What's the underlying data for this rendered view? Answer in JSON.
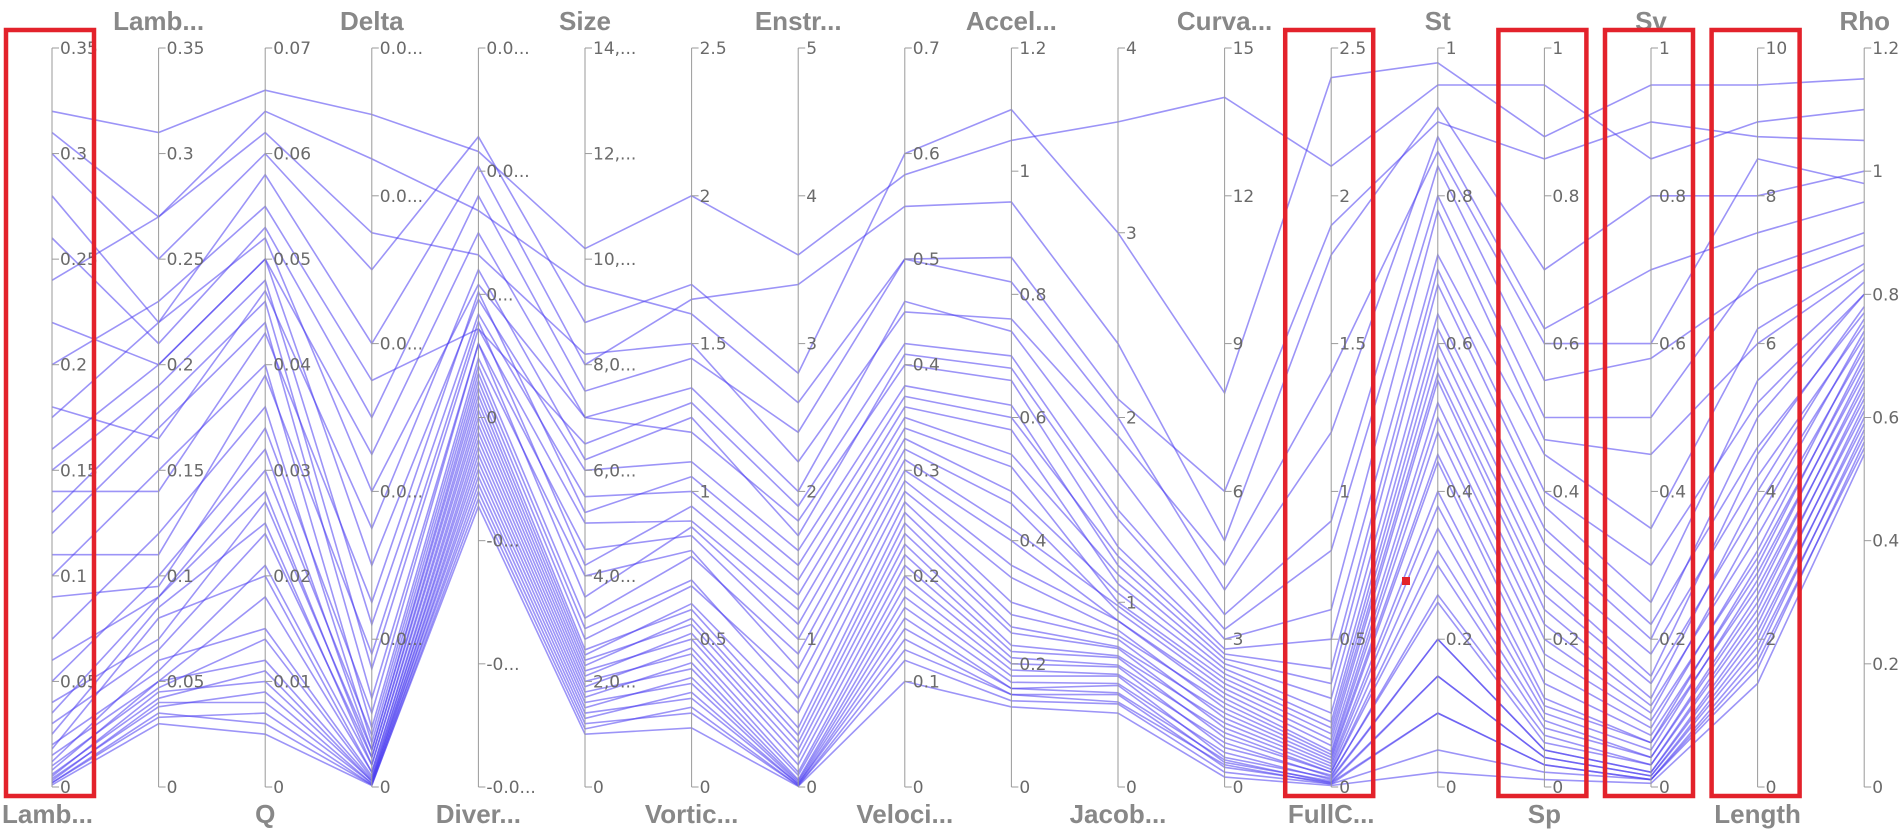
{
  "colors": {
    "line": "#4b3df0",
    "highlight": "#e3222b",
    "axis": "#9a9a9a",
    "title": "#888888"
  },
  "chart_data": {
    "type": "parallel-coordinates",
    "dimensions": [
      {
        "key": "lambda2",
        "title": "Lamb...",
        "title_pos": "bottom",
        "range": [
          0,
          0.35
        ],
        "ticks": [
          "0",
          "0.05",
          "0.1",
          "0.15",
          "0.2",
          "0.25",
          "0.3",
          "0.35"
        ],
        "highlighted": true
      },
      {
        "key": "lambda",
        "title": "Lamb...",
        "title_pos": "top",
        "range": [
          0,
          0.35
        ],
        "ticks": [
          "0",
          "0.05",
          "0.1",
          "0.15",
          "0.2",
          "0.25",
          "0.3",
          "0.35"
        ]
      },
      {
        "key": "q",
        "title": "Q",
        "title_pos": "bottom",
        "range": [
          0,
          0.07
        ],
        "ticks": [
          "0",
          "0.01",
          "0.02",
          "0.03",
          "0.04",
          "0.05",
          "0.06",
          "0.07"
        ]
      },
      {
        "key": "delta",
        "title": "Delta",
        "title_pos": "top",
        "range": [
          0,
          1
        ],
        "ticks": [
          "0",
          "0.0...",
          "0.0...",
          "0.0...",
          "0.0...",
          "0.0..."
        ]
      },
      {
        "key": "divergence",
        "title": "Diver...",
        "title_pos": "bottom",
        "range": [
          0,
          1
        ],
        "ticks": [
          "-0.0...",
          "-0...",
          "-0...",
          "0",
          "0...",
          "0.0...",
          "0.0..."
        ]
      },
      {
        "key": "size",
        "title": "Size",
        "title_pos": "top",
        "range": [
          0,
          14
        ],
        "ticks": [
          "0",
          "2,0...",
          "4,0...",
          "6,0...",
          "8,0...",
          "10,...",
          "12,...",
          "14,..."
        ]
      },
      {
        "key": "vorticity",
        "title": "Vortic...",
        "title_pos": "bottom",
        "range": [
          0,
          2.5
        ],
        "ticks": [
          "0",
          "0.5",
          "1",
          "1.5",
          "2",
          "2.5"
        ]
      },
      {
        "key": "enstrophy",
        "title": "Enstr...",
        "title_pos": "top",
        "range": [
          0,
          5
        ],
        "ticks": [
          "0",
          "1",
          "2",
          "3",
          "4",
          "5"
        ]
      },
      {
        "key": "velocity",
        "title": "Veloci...",
        "title_pos": "bottom",
        "range": [
          0,
          0.7
        ],
        "ticks": [
          "0",
          "0.1",
          "0.2",
          "0.3",
          "0.4",
          "0.5",
          "0.6",
          "0.7"
        ]
      },
      {
        "key": "acceleration",
        "title": "Accel...",
        "title_pos": "top",
        "range": [
          0,
          1.2
        ],
        "ticks": [
          "0",
          "0.2",
          "0.4",
          "0.6",
          "0.8",
          "1",
          "1.2"
        ]
      },
      {
        "key": "jacobian",
        "title": "Jacob...",
        "title_pos": "bottom",
        "range": [
          0,
          4
        ],
        "ticks": [
          "0",
          "1",
          "2",
          "3",
          "4"
        ]
      },
      {
        "key": "curvature",
        "title": "Curva...",
        "title_pos": "top",
        "range": [
          0,
          15
        ],
        "ticks": [
          "0",
          "3",
          "6",
          "9",
          "12",
          "15"
        ]
      },
      {
        "key": "fullc",
        "title": "FullC...",
        "title_pos": "bottom",
        "range": [
          0,
          2.5
        ],
        "ticks": [
          "0",
          "0.5",
          "1",
          "1.5",
          "2",
          "2.5"
        ],
        "highlighted": true
      },
      {
        "key": "st",
        "title": "St",
        "title_pos": "top",
        "range": [
          0,
          1
        ],
        "ticks": [
          "0",
          "0.2",
          "0.4",
          "0.6",
          "0.8",
          "1"
        ]
      },
      {
        "key": "sp",
        "title": "Sp",
        "title_pos": "bottom",
        "range": [
          0,
          1
        ],
        "ticks": [
          "0",
          "0.2",
          "0.4",
          "0.6",
          "0.8",
          "1"
        ],
        "highlighted": true
      },
      {
        "key": "sv",
        "title": "Sv",
        "title_pos": "top",
        "range": [
          0,
          1
        ],
        "ticks": [
          "0",
          "0.2",
          "0.4",
          "0.6",
          "0.8",
          "1"
        ],
        "highlighted": true
      },
      {
        "key": "length",
        "title": "Length",
        "title_pos": "bottom",
        "range": [
          0,
          10
        ],
        "ticks": [
          "0",
          "2",
          "4",
          "6",
          "8",
          "10"
        ],
        "highlighted": true
      },
      {
        "key": "rho",
        "title": "Rho",
        "title_pos": "top",
        "range": [
          0,
          1.2
        ],
        "ticks": [
          "0",
          "0.2",
          "0.4",
          "0.6",
          "0.8",
          "1",
          "1.2"
        ]
      }
    ],
    "rows": [
      [
        0.32,
        0.31,
        0.066,
        0.91,
        0.86,
        10.2,
        2.0,
        3.6,
        0.58,
        1.05,
        3.6,
        14.0,
        2.1,
        0.95,
        0.95,
        0.85,
        9.0,
        1.1
      ],
      [
        0.31,
        0.27,
        0.064,
        0.85,
        0.78,
        9.5,
        1.6,
        2.6,
        0.5,
        0.86,
        2.1,
        6.0,
        1.9,
        0.9,
        0.85,
        0.9,
        8.8,
        1.05
      ],
      [
        0.24,
        0.27,
        0.062,
        0.75,
        0.72,
        8.2,
        1.5,
        2.2,
        0.45,
        0.76,
        1.9,
        4.5,
        1.4,
        0.86,
        0.6,
        0.6,
        8.5,
        0.98
      ],
      [
        0.2,
        0.23,
        0.055,
        0.55,
        0.62,
        6.5,
        1.3,
        1.9,
        0.42,
        0.7,
        1.5,
        3.2,
        0.8,
        0.8,
        0.5,
        0.5,
        7.0,
        0.9
      ],
      [
        0.175,
        0.22,
        0.052,
        0.4,
        0.68,
        7.0,
        1.2,
        1.8,
        0.4,
        0.66,
        1.3,
        2.8,
        0.5,
        0.72,
        0.45,
        0.35,
        6.2,
        0.85
      ],
      [
        0.16,
        0.2,
        0.05,
        0.3,
        0.66,
        6.0,
        1.1,
        1.6,
        0.38,
        0.62,
        1.2,
        2.6,
        0.35,
        0.68,
        0.38,
        0.25,
        5.5,
        0.82
      ],
      [
        0.15,
        0.19,
        0.048,
        0.22,
        0.64,
        5.5,
        1.0,
        1.4,
        0.36,
        0.58,
        1.1,
        2.4,
        0.25,
        0.62,
        0.33,
        0.2,
        5.0,
        0.8
      ],
      [
        0.13,
        0.18,
        0.046,
        0.16,
        0.62,
        5.0,
        0.9,
        1.2,
        0.34,
        0.52,
        1.0,
        2.2,
        0.2,
        0.58,
        0.28,
        0.15,
        4.5,
        0.78
      ],
      [
        0.12,
        0.17,
        0.044,
        0.12,
        0.6,
        4.5,
        0.85,
        1.0,
        0.32,
        0.46,
        0.95,
        2.0,
        0.16,
        0.55,
        0.24,
        0.12,
        4.0,
        0.76
      ],
      [
        0.1,
        0.15,
        0.04,
        0.08,
        0.58,
        4.0,
        0.8,
        0.8,
        0.3,
        0.4,
        0.9,
        1.8,
        0.12,
        0.5,
        0.2,
        0.1,
        3.6,
        0.74
      ],
      [
        0.07,
        0.12,
        0.036,
        0.06,
        0.56,
        3.0,
        0.7,
        0.6,
        0.28,
        0.34,
        0.85,
        1.6,
        0.1,
        0.45,
        0.16,
        0.08,
        3.2,
        0.72
      ],
      [
        0.05,
        0.1,
        0.032,
        0.05,
        0.54,
        2.6,
        0.6,
        0.4,
        0.26,
        0.28,
        0.8,
        1.4,
        0.08,
        0.4,
        0.12,
        0.06,
        3.0,
        0.7
      ],
      [
        0.035,
        0.09,
        0.028,
        0.04,
        0.52,
        2.4,
        0.55,
        0.3,
        0.24,
        0.25,
        0.75,
        1.2,
        0.06,
        0.35,
        0.1,
        0.05,
        2.8,
        0.68
      ],
      [
        0.025,
        0.085,
        0.025,
        0.03,
        0.5,
        2.2,
        0.5,
        0.2,
        0.22,
        0.22,
        0.7,
        1.0,
        0.05,
        0.3,
        0.08,
        0.04,
        2.6,
        0.66
      ],
      [
        0.018,
        0.08,
        0.02,
        0.02,
        0.48,
        2.0,
        0.45,
        0.1,
        0.2,
        0.2,
        0.65,
        0.8,
        0.04,
        0.25,
        0.06,
        0.03,
        2.4,
        0.64
      ],
      [
        0.012,
        0.06,
        0.015,
        0.015,
        0.46,
        1.8,
        0.4,
        0.05,
        0.18,
        0.18,
        0.6,
        0.6,
        0.03,
        0.2,
        0.05,
        0.02,
        2.2,
        0.62
      ],
      [
        0.008,
        0.05,
        0.012,
        0.01,
        0.44,
        1.6,
        0.35,
        0.03,
        0.16,
        0.16,
        0.55,
        0.5,
        0.02,
        0.15,
        0.04,
        0.015,
        2.0,
        0.6
      ],
      [
        0.005,
        0.045,
        0.01,
        0.008,
        0.42,
        1.4,
        0.3,
        0.02,
        0.14,
        0.15,
        0.5,
        0.4,
        0.015,
        0.1,
        0.03,
        0.01,
        1.8,
        0.58
      ],
      [
        0.003,
        0.04,
        0.008,
        0.005,
        0.4,
        1.2,
        0.25,
        0.01,
        0.12,
        0.14,
        0.45,
        0.3,
        0.01,
        0.05,
        0.02,
        0.01,
        1.6,
        0.56
      ],
      [
        0.002,
        0.035,
        0.006,
        0.003,
        0.38,
        1.0,
        0.2,
        0.005,
        0.1,
        0.13,
        0.4,
        0.2,
        0.005,
        0.02,
        0.01,
        0.005,
        1.4,
        0.54
      ],
      [
        0.3,
        0.25,
        0.06,
        0.7,
        0.88,
        8.8,
        1.7,
        2.8,
        0.6,
        1.1,
        3.0,
        8.0,
        2.4,
        0.98,
        0.88,
        0.95,
        9.5,
        1.15
      ],
      [
        0.28,
        0.22,
        0.058,
        0.6,
        0.84,
        8.0,
        1.65,
        3.4,
        0.55,
        0.95,
        2.4,
        5.0,
        1.8,
        0.92,
        0.7,
        0.8,
        8.0,
        1.0
      ],
      [
        0.26,
        0.21,
        0.053,
        0.5,
        0.8,
        7.5,
        1.45,
        2.4,
        0.5,
        0.82,
        2.0,
        4.0,
        1.2,
        0.88,
        0.62,
        0.7,
        7.5,
        0.95
      ],
      [
        0.22,
        0.2,
        0.05,
        0.45,
        0.75,
        7.0,
        1.35,
        2.0,
        0.46,
        0.74,
        1.7,
        3.5,
        0.9,
        0.84,
        0.55,
        0.58,
        6.8,
        0.88
      ],
      [
        0.18,
        0.165,
        0.047,
        0.35,
        0.7,
        6.2,
        1.25,
        1.7,
        0.41,
        0.68,
        1.45,
        3.0,
        0.6,
        0.78,
        0.47,
        0.45,
        6.0,
        0.84
      ],
      [
        0.14,
        0.14,
        0.043,
        0.25,
        0.67,
        5.2,
        1.05,
        1.5,
        0.37,
        0.6,
        1.25,
        2.7,
        0.4,
        0.7,
        0.4,
        0.3,
        5.2,
        0.8
      ],
      [
        0.11,
        0.11,
        0.039,
        0.18,
        0.63,
        4.2,
        0.95,
        1.3,
        0.35,
        0.54,
        1.15,
        2.5,
        0.3,
        0.64,
        0.35,
        0.22,
        4.6,
        0.77
      ],
      [
        0.09,
        0.095,
        0.034,
        0.1,
        0.6,
        3.6,
        0.88,
        1.1,
        0.33,
        0.48,
        1.05,
        2.3,
        0.22,
        0.6,
        0.3,
        0.18,
        4.2,
        0.75
      ],
      [
        0.06,
        0.09,
        0.03,
        0.07,
        0.57,
        3.2,
        0.78,
        0.9,
        0.31,
        0.42,
        0.98,
        2.1,
        0.18,
        0.56,
        0.26,
        0.14,
        3.8,
        0.73
      ],
      [
        0.04,
        0.07,
        0.027,
        0.05,
        0.55,
        2.8,
        0.68,
        0.7,
        0.29,
        0.36,
        0.9,
        1.9,
        0.14,
        0.52,
        0.22,
        0.11,
        3.4,
        0.71
      ],
      [
        0.03,
        0.065,
        0.024,
        0.04,
        0.53,
        2.5,
        0.62,
        0.5,
        0.27,
        0.3,
        0.82,
        1.7,
        0.11,
        0.48,
        0.18,
        0.09,
        3.1,
        0.69
      ],
      [
        0.02,
        0.055,
        0.021,
        0.03,
        0.51,
        2.3,
        0.57,
        0.35,
        0.25,
        0.26,
        0.76,
        1.5,
        0.09,
        0.44,
        0.14,
        0.07,
        2.9,
        0.67
      ],
      [
        0.015,
        0.05,
        0.018,
        0.02,
        0.49,
        2.1,
        0.52,
        0.25,
        0.23,
        0.23,
        0.71,
        1.3,
        0.07,
        0.38,
        0.11,
        0.06,
        2.7,
        0.65
      ],
      [
        0.01,
        0.047,
        0.014,
        0.012,
        0.47,
        1.9,
        0.47,
        0.15,
        0.21,
        0.21,
        0.66,
        1.1,
        0.05,
        0.32,
        0.09,
        0.04,
        2.5,
        0.63
      ],
      [
        0.006,
        0.042,
        0.011,
        0.008,
        0.45,
        1.7,
        0.42,
        0.08,
        0.19,
        0.19,
        0.61,
        0.9,
        0.035,
        0.26,
        0.07,
        0.03,
        2.3,
        0.61
      ],
      [
        0.004,
        0.038,
        0.009,
        0.005,
        0.43,
        1.5,
        0.37,
        0.04,
        0.17,
        0.17,
        0.56,
        0.7,
        0.025,
        0.2,
        0.05,
        0.02,
        2.1,
        0.59
      ],
      [
        0.002,
        0.033,
        0.007,
        0.003,
        0.41,
        1.3,
        0.32,
        0.02,
        0.15,
        0.16,
        0.51,
        0.55,
        0.015,
        0.15,
        0.04,
        0.015,
        1.9,
        0.57
      ],
      [
        0.001,
        0.03,
        0.005,
        0.002,
        0.39,
        1.1,
        0.27,
        0.01,
        0.13,
        0.15,
        0.46,
        0.45,
        0.01,
        0.1,
        0.03,
        0.01,
        1.7,
        0.55
      ]
    ]
  }
}
